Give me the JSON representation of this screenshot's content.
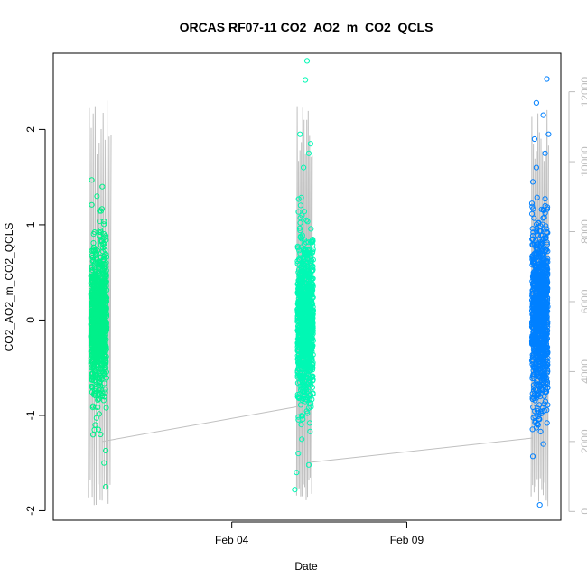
{
  "chart_data": {
    "type": "scatter",
    "title": "ORCAS RF07-11 CO2_AO2_m_CO2_QCLS",
    "xlabel": "Date",
    "ylabel": "CO2_AO2_m_CO2_QCLS",
    "x_ticks": [
      {
        "label": "Feb 04",
        "value": 4
      },
      {
        "label": "Feb 09",
        "value": 9
      }
    ],
    "x_range": [
      -1.1,
      13.4
    ],
    "ylim": [
      -2.1,
      2.8
    ],
    "y_ticks": [
      -2,
      -1,
      0,
      1,
      2
    ],
    "y2_label": "",
    "y2_ticks": [
      0,
      2000,
      4000,
      6000,
      8000,
      10000,
      12000
    ],
    "y2_range": [
      -250,
      13100
    ],
    "grid": false,
    "series": [
      {
        "flight_x_center": 0.2,
        "x_spread": 0.45,
        "color": "#00f08a",
        "n_points": 1000,
        "mean": 0.0,
        "sd": 0.38,
        "extremes": [
          {
            "x": 0.0,
            "y": 1.47
          },
          {
            "x": 0.3,
            "y": 1.4
          },
          {
            "x": 0.15,
            "y": 1.3
          },
          {
            "x": 0.4,
            "y": -1.37
          },
          {
            "x": 0.35,
            "y": -1.5
          },
          {
            "x": 0.4,
            "y": -1.75
          },
          {
            "x": 0.1,
            "y": -1.1
          },
          {
            "x": 0.25,
            "y": -1.2
          }
        ]
      },
      {
        "flight_x_center": 6.1,
        "x_spread": 0.45,
        "color": "#00f8b4",
        "n_points": 1000,
        "mean": 0.0,
        "sd": 0.42,
        "extremes": [
          {
            "x": 6.15,
            "y": 2.72
          },
          {
            "x": 6.1,
            "y": 2.52
          },
          {
            "x": 5.95,
            "y": 1.95
          },
          {
            "x": 6.25,
            "y": 1.85
          },
          {
            "x": 6.2,
            "y": 1.75
          },
          {
            "x": 6.05,
            "y": 1.6
          },
          {
            "x": 5.85,
            "y": -1.6
          },
          {
            "x": 5.8,
            "y": -1.78
          },
          {
            "x": 6.2,
            "y": -1.52
          },
          {
            "x": 6.0,
            "y": -1.25
          },
          {
            "x": 5.9,
            "y": -1.4
          }
        ]
      },
      {
        "flight_x_center": 12.8,
        "x_spread": 0.45,
        "color": "#0080ff",
        "n_points": 1000,
        "mean": 0.05,
        "sd": 0.45,
        "extremes": [
          {
            "x": 13.0,
            "y": 2.53
          },
          {
            "x": 12.7,
            "y": 2.28
          },
          {
            "x": 12.9,
            "y": 2.15
          },
          {
            "x": 13.05,
            "y": 1.95
          },
          {
            "x": 12.65,
            "y": 1.9
          },
          {
            "x": 12.95,
            "y": 1.75
          },
          {
            "x": 12.7,
            "y": 1.6
          },
          {
            "x": 12.6,
            "y": 1.45
          },
          {
            "x": 12.9,
            "y": -1.3
          },
          {
            "x": 12.6,
            "y": -1.43
          },
          {
            "x": 12.8,
            "y": -1.94
          },
          {
            "x": 12.75,
            "y": -1.1
          }
        ]
      }
    ],
    "altitude_trace": {
      "color": "#c0c0c0",
      "connectors": [
        {
          "from": {
            "x": 0.3,
            "y2": 2000
          },
          "to": {
            "x": 5.9,
            "y2": 3000
          }
        },
        {
          "from": {
            "x": 6.2,
            "y2": 1400
          },
          "to": {
            "x": 12.6,
            "y2": 2100
          }
        }
      ],
      "flights": [
        {
          "x_start": -0.1,
          "x_end": 0.55,
          "y2_min": 100,
          "y2_max": 12000
        },
        {
          "x_start": 5.85,
          "x_end": 6.3,
          "y2_min": 300,
          "y2_max": 11800
        },
        {
          "x_start": 12.55,
          "x_end": 13.05,
          "y2_min": 150,
          "y2_max": 11500
        }
      ]
    }
  }
}
